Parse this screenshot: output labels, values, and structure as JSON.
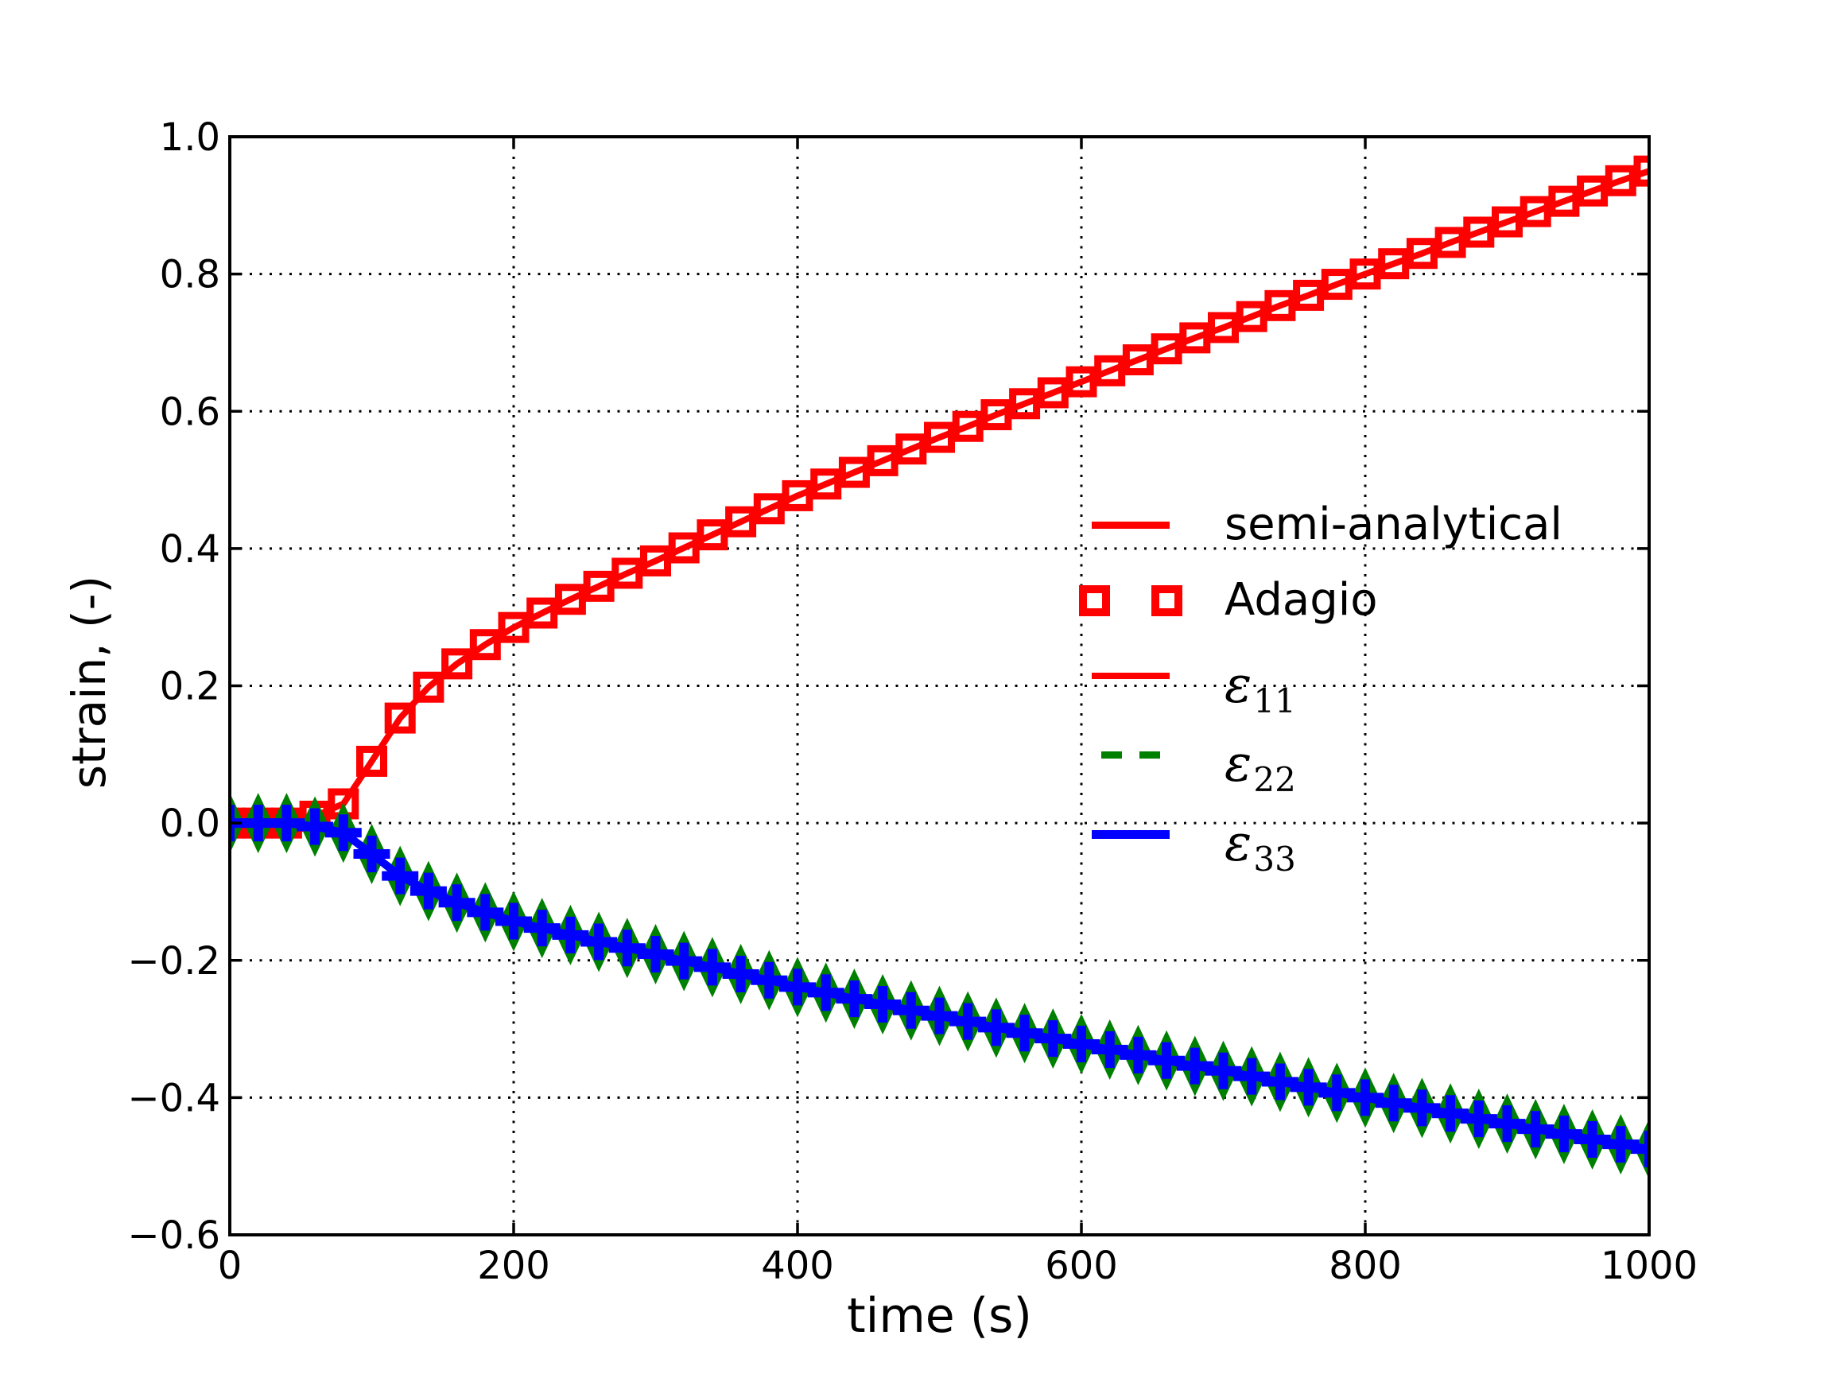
{
  "chart_data": {
    "type": "line",
    "title": "",
    "xlabel": "time (s)",
    "ylabel": "strain, (-)",
    "xlim": [
      0,
      1000
    ],
    "ylim": [
      -0.6,
      1.0
    ],
    "xticks": [
      0,
      200,
      400,
      600,
      800,
      1000
    ],
    "xtick_labels": [
      "0",
      "200",
      "400",
      "600",
      "800",
      "1000"
    ],
    "yticks": [
      -0.6,
      -0.4,
      -0.2,
      0.0,
      0.2,
      0.4,
      0.6,
      0.8,
      1.0
    ],
    "ytick_labels": [
      "−0.6",
      "−0.4",
      "−0.2",
      "0.0",
      "0.2",
      "0.4",
      "0.6",
      "0.8",
      "1.0"
    ],
    "grid": "dotted",
    "background": "#ffffff",
    "colors": {
      "red": "#ff0000",
      "green": "#008000",
      "blue": "#0000ff",
      "axis": "#000000"
    },
    "x": [
      0,
      20,
      40,
      60,
      80,
      100,
      120,
      140,
      160,
      180,
      200,
      220,
      240,
      260,
      280,
      300,
      320,
      340,
      360,
      380,
      400,
      420,
      440,
      460,
      480,
      500,
      520,
      540,
      560,
      580,
      600,
      620,
      640,
      660,
      680,
      700,
      720,
      740,
      760,
      780,
      800,
      820,
      840,
      860,
      880,
      900,
      920,
      940,
      960,
      980,
      1000
    ],
    "series": [
      {
        "name": "epsilon_11",
        "role": "semi-analytical line + Adagio markers",
        "color": "#ff0000",
        "line": "solid",
        "marker": "open-square",
        "values": [
          0.0,
          0.0,
          0.0,
          0.01,
          0.028,
          0.09,
          0.153,
          0.198,
          0.232,
          0.26,
          0.285,
          0.306,
          0.326,
          0.345,
          0.364,
          0.382,
          0.401,
          0.42,
          0.439,
          0.458,
          0.477,
          0.494,
          0.511,
          0.528,
          0.545,
          0.562,
          0.578,
          0.595,
          0.611,
          0.627,
          0.643,
          0.659,
          0.675,
          0.691,
          0.707,
          0.722,
          0.738,
          0.754,
          0.769,
          0.785,
          0.8,
          0.815,
          0.83,
          0.846,
          0.861,
          0.876,
          0.891,
          0.906,
          0.921,
          0.936,
          0.95
        ]
      },
      {
        "name": "epsilon_22",
        "role": "semi-analytical line + Adagio markers",
        "color": "#008000",
        "line": "dashed",
        "marker": "thin-diamond",
        "values": [
          0.0,
          0.0,
          0.0,
          -0.005,
          -0.014,
          -0.045,
          -0.077,
          -0.099,
          -0.116,
          -0.13,
          -0.143,
          -0.153,
          -0.163,
          -0.173,
          -0.182,
          -0.191,
          -0.201,
          -0.21,
          -0.22,
          -0.229,
          -0.239,
          -0.247,
          -0.256,
          -0.264,
          -0.273,
          -0.281,
          -0.289,
          -0.298,
          -0.306,
          -0.314,
          -0.322,
          -0.33,
          -0.338,
          -0.346,
          -0.354,
          -0.361,
          -0.369,
          -0.377,
          -0.385,
          -0.393,
          -0.4,
          -0.408,
          -0.415,
          -0.423,
          -0.431,
          -0.438,
          -0.446,
          -0.453,
          -0.461,
          -0.468,
          -0.475
        ]
      },
      {
        "name": "epsilon_33",
        "role": "semi-analytical line + Adagio markers",
        "color": "#0000ff",
        "line": "solid",
        "marker": "plus",
        "values": [
          0.0,
          0.0,
          0.0,
          -0.005,
          -0.014,
          -0.045,
          -0.077,
          -0.099,
          -0.116,
          -0.13,
          -0.143,
          -0.153,
          -0.163,
          -0.173,
          -0.182,
          -0.191,
          -0.201,
          -0.21,
          -0.22,
          -0.229,
          -0.239,
          -0.247,
          -0.256,
          -0.264,
          -0.273,
          -0.281,
          -0.289,
          -0.298,
          -0.306,
          -0.314,
          -0.322,
          -0.33,
          -0.338,
          -0.346,
          -0.354,
          -0.361,
          -0.369,
          -0.377,
          -0.385,
          -0.393,
          -0.4,
          -0.408,
          -0.415,
          -0.423,
          -0.431,
          -0.438,
          -0.446,
          -0.453,
          -0.461,
          -0.468,
          -0.475
        ]
      }
    ],
    "legend": {
      "position": "center-right",
      "frame": false,
      "entries": [
        {
          "label": "semi-analytical",
          "sample": "red-solid-line"
        },
        {
          "label": "Adagio",
          "sample": "red-open-squares"
        },
        {
          "label_base": "ε",
          "label_sub": "11",
          "sample": "red-solid-line"
        },
        {
          "label_base": "ε",
          "label_sub": "22",
          "sample": "green-dashed-line"
        },
        {
          "label_base": "ε",
          "label_sub": "33",
          "sample": "blue-solid-line"
        }
      ]
    }
  }
}
